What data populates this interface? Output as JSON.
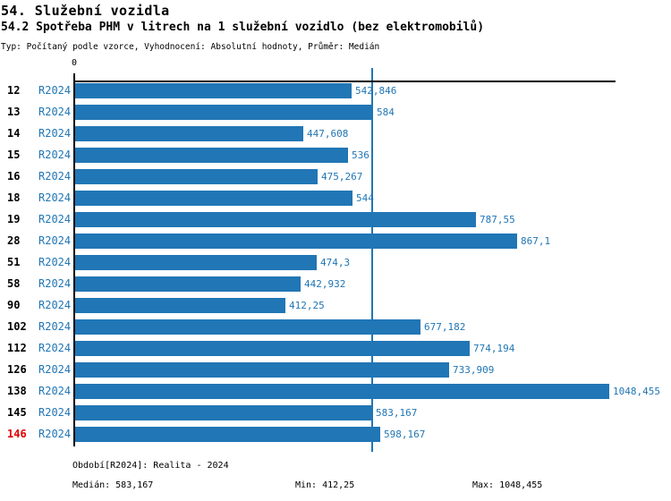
{
  "header": {
    "title": "54. Služební vozidla",
    "subtitle": "54.2 Spotřeba PHM v litrech na 1 služební vozidlo (bez elektromobilů)",
    "meta": "Typ: Počítaný podle vzorce, Vyhodnocení: Absolutní hodnoty, Průměr: Medián"
  },
  "colors": {
    "bar_blue": "#2176b5",
    "text_blue": "#2176b5",
    "highlight_red": "#e00000",
    "axis_black": "#000000"
  },
  "chart_data": {
    "type": "bar",
    "orientation": "horizontal",
    "series_label": "R2024",
    "x_axis": {
      "zero_label": "0",
      "xlim": [
        0,
        1060
      ],
      "grid": false
    },
    "categories": [
      "12",
      "13",
      "14",
      "15",
      "16",
      "18",
      "19",
      "28",
      "51",
      "58",
      "90",
      "102",
      "112",
      "126",
      "138",
      "145",
      "146"
    ],
    "values": [
      542.846,
      584,
      447.608,
      536,
      475.267,
      544,
      787.55,
      867.1,
      474.3,
      442.932,
      412.25,
      677.182,
      774.194,
      733.909,
      1048.455,
      583.167,
      598.167
    ],
    "value_labels": [
      "542,846",
      "584",
      "447,608",
      "536",
      "475,267",
      "544",
      "787,55",
      "867,1",
      "474,3",
      "442,932",
      "412,25",
      "677,182",
      "774,194",
      "733,909",
      "1048,455",
      "583,167",
      "598,167"
    ],
    "highlight_category": "146",
    "median_value": 583.167,
    "legend_position": "none"
  },
  "footer": {
    "period": "Období[R2024]: Realita - 2024",
    "median": "Medián: 583,167",
    "min": "Min: 412,25",
    "max": "Max: 1048,455"
  }
}
